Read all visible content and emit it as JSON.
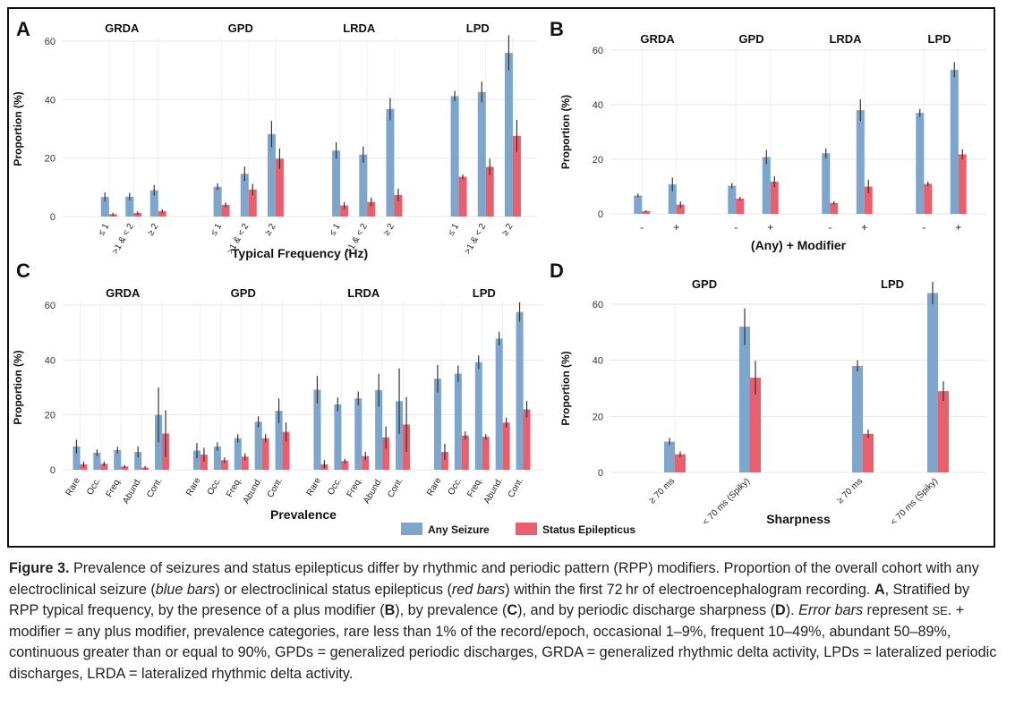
{
  "colors": {
    "blue": "#7ea6cc",
    "red": "#e8606e",
    "grid": "#e6e6e6"
  },
  "legend": {
    "blue_label": "Any Seizure",
    "red_label": "Status Epilepticus"
  },
  "caption": {
    "fig_label": "Figure 3.",
    "p1": " Prevalence of seizures and status epilepticus differ by rhythmic and periodic pattern (RPP) modifiers. Proportion of the overall cohort with any electroclinical seizure (",
    "blue_bars": "blue bars",
    "p2": ") or electroclinical status epilepticus (",
    "red_bars": "red bars",
    "p3": ") within the first 72 hr of electroencephalogram recording. ",
    "a": "A",
    "p4": ", Stratified by RPP typical frequency, by the presence of a plus modifier (",
    "b": "B",
    "p5": "), by prevalence (",
    "c": "C",
    "p6": "), and by periodic discharge sharpness (",
    "d": "D",
    "p7": "). ",
    "error_bars": "Error bars",
    "p8": " represent ",
    "se": "SE",
    "p9": ". + modifier = any plus modifier, prevalence categories, rare less than 1% of the record/epoch, occasional 1–9%, frequent 10–49%, abundant 50–89%, continuous greater than or equal to 90%, GPDs = generalized periodic discharges, GRDA = generalized rhythmic delta activity, LPDs = lateralized periodic discharges, LRDA = lateralized rhythmic delta activity."
  },
  "chart_data": [
    {
      "panel": "A",
      "type": "bar",
      "xlabel": "Typical Frequency (Hz)",
      "ylabel": "Proportion (%)",
      "ylim": [
        0,
        60
      ],
      "yticks": [
        0,
        20,
        40,
        60
      ],
      "groups": [
        {
          "name": "GRDA",
          "categories": [
            "≤ 1",
            ">1 & < 2",
            "≥ 2"
          ],
          "series": [
            {
              "name": "Any Seizure",
              "values": [
                6.7,
                6.8,
                9.0
              ],
              "errors": [
                1.5,
                1.3,
                1.8
              ]
            },
            {
              "name": "Status Epilepticus",
              "values": [
                0.8,
                1.2,
                1.8
              ],
              "errors": [
                0.5,
                0.6,
                0.7
              ]
            }
          ]
        },
        {
          "name": "GPD",
          "categories": [
            "≤ 1",
            ">1 & < 2",
            "≥ 2"
          ],
          "series": [
            {
              "name": "Any Seizure",
              "values": [
                10.2,
                14.6,
                28.2
              ],
              "errors": [
                1.2,
                2.5,
                4.5
              ]
            },
            {
              "name": "Status Epilepticus",
              "values": [
                4.0,
                9.2,
                19.8
              ],
              "errors": [
                0.8,
                2.0,
                3.5
              ]
            }
          ]
        },
        {
          "name": "LRDA",
          "categories": [
            "≤ 1",
            ">1 & < 2",
            "≥ 2"
          ],
          "series": [
            {
              "name": "Any Seizure",
              "values": [
                22.6,
                21.2,
                36.8
              ],
              "errors": [
                2.8,
                2.8,
                3.8
              ]
            },
            {
              "name": "Status Epilepticus",
              "values": [
                3.8,
                5.0,
                7.4
              ],
              "errors": [
                1.2,
                1.5,
                2.2
              ]
            }
          ]
        },
        {
          "name": "LPD",
          "categories": [
            "≤ 1",
            ">1 & < 2",
            "≥ 2"
          ],
          "series": [
            {
              "name": "Any Seizure",
              "values": [
                41.2,
                42.6,
                56.0
              ],
              "errors": [
                1.8,
                3.5,
                6.0
              ]
            },
            {
              "name": "Status Epilepticus",
              "values": [
                13.6,
                17.0,
                27.6
              ],
              "errors": [
                0.8,
                2.8,
                5.5
              ]
            }
          ]
        }
      ]
    },
    {
      "panel": "B",
      "type": "bar",
      "xlabel": "(Any) + Modifier",
      "ylabel": "Proportion (%)",
      "ylim": [
        0,
        60
      ],
      "yticks": [
        0,
        20,
        40,
        60
      ],
      "groups": [
        {
          "name": "GRDA",
          "categories": [
            "-",
            "+"
          ],
          "series": [
            {
              "name": "Any Seizure",
              "values": [
                6.7,
                10.8
              ],
              "errors": [
                0.7,
                2.5
              ]
            },
            {
              "name": "Status Epilepticus",
              "values": [
                1.0,
                3.4
              ],
              "errors": [
                0.3,
                1.2
              ]
            }
          ]
        },
        {
          "name": "GPD",
          "categories": [
            "-",
            "+"
          ],
          "series": [
            {
              "name": "Any Seizure",
              "values": [
                10.3,
                20.8
              ],
              "errors": [
                1.0,
                2.6
              ]
            },
            {
              "name": "Status Epilepticus",
              "values": [
                5.6,
                11.8
              ],
              "errors": [
                0.6,
                2.0
              ]
            }
          ]
        },
        {
          "name": "LRDA",
          "categories": [
            "-",
            "+"
          ],
          "series": [
            {
              "name": "Any Seizure",
              "values": [
                22.2,
                38.0
              ],
              "errors": [
                1.8,
                4.0
              ]
            },
            {
              "name": "Status Epilepticus",
              "values": [
                4.0,
                10.0
              ],
              "errors": [
                0.6,
                2.5
              ]
            }
          ]
        },
        {
          "name": "LPD",
          "categories": [
            "-",
            "+"
          ],
          "series": [
            {
              "name": "Any Seizure",
              "values": [
                37.0,
                52.8
              ],
              "errors": [
                1.5,
                2.8
              ]
            },
            {
              "name": "Status Epilepticus",
              "values": [
                11.0,
                21.8
              ],
              "errors": [
                0.8,
                1.8
              ]
            }
          ]
        }
      ]
    },
    {
      "panel": "C",
      "type": "bar",
      "xlabel": "Prevalence",
      "ylabel": "Proportion (%)",
      "ylim": [
        0,
        60
      ],
      "yticks": [
        0,
        20,
        40,
        60
      ],
      "groups": [
        {
          "name": "GRDA",
          "categories": [
            "Rare",
            "Occ.",
            "Freq.",
            "Abund.",
            "Cont."
          ],
          "series": [
            {
              "name": "Any Seizure",
              "values": [
                8.5,
                6.2,
                7.2,
                6.5,
                20.0
              ],
              "errors": [
                2.5,
                1.2,
                1.2,
                2.0,
                10.0
              ]
            },
            {
              "name": "Status Epilepticus",
              "values": [
                2.0,
                2.2,
                1.2,
                0.8,
                13.2
              ],
              "errors": [
                1.0,
                0.8,
                0.5,
                0.6,
                8.5
              ]
            }
          ]
        },
        {
          "name": "GPD",
          "categories": [
            "Rare",
            "Occ.",
            "Freq.",
            "Abund.",
            "Cont."
          ],
          "series": [
            {
              "name": "Any Seizure",
              "values": [
                7.0,
                8.5,
                11.5,
                17.5,
                21.5
              ],
              "errors": [
                2.8,
                1.5,
                1.5,
                2.0,
                4.5
              ]
            },
            {
              "name": "Status Epilepticus",
              "values": [
                5.5,
                3.5,
                4.8,
                11.5,
                13.8
              ],
              "errors": [
                2.5,
                1.0,
                1.2,
                1.5,
                3.5
              ]
            }
          ]
        },
        {
          "name": "LRDA",
          "categories": [
            "Rare",
            "Occ.",
            "Freq.",
            "Abund.",
            "Cont."
          ],
          "series": [
            {
              "name": "Any Seizure",
              "values": [
                29.2,
                23.8,
                26.0,
                29.0,
                25.0
              ],
              "errors": [
                5.0,
                2.5,
                2.5,
                6.0,
                12.0
              ]
            },
            {
              "name": "Status Epilepticus",
              "values": [
                2.0,
                3.2,
                5.0,
                11.8,
                16.5
              ],
              "errors": [
                1.5,
                0.8,
                1.5,
                4.0,
                10.0
              ]
            }
          ]
        },
        {
          "name": "LPD",
          "categories": [
            "Rare",
            "Occ.",
            "Freq.",
            "Abund.",
            "Cont."
          ],
          "series": [
            {
              "name": "Any Seizure",
              "values": [
                33.2,
                35.0,
                39.2,
                47.8,
                57.5
              ],
              "errors": [
                5.0,
                3.0,
                2.5,
                2.5,
                3.5
              ]
            },
            {
              "name": "Status Epilepticus",
              "values": [
                6.5,
                12.5,
                12.0,
                17.2,
                22.0
              ],
              "errors": [
                3.0,
                1.5,
                1.0,
                1.8,
                3.0
              ]
            }
          ]
        }
      ]
    },
    {
      "panel": "D",
      "type": "bar",
      "xlabel": "Sharpness",
      "ylabel": "Proportion (%)",
      "ylim": [
        0,
        60
      ],
      "yticks": [
        0,
        20,
        40,
        60
      ],
      "groups": [
        {
          "name": "GPD",
          "categories": [
            "≥ 70 ms",
            "< 70 ms (Spiky)"
          ],
          "series": [
            {
              "name": "Any Seizure",
              "values": [
                11.0,
                52.0
              ],
              "errors": [
                1.3,
                6.5
              ]
            },
            {
              "name": "Status Epilepticus",
              "values": [
                6.5,
                33.8
              ],
              "errors": [
                1.0,
                6.0
              ]
            }
          ]
        },
        {
          "name": "LPD",
          "categories": [
            "≥ 70 ms",
            "< 70 ms (Spiky)"
          ],
          "series": [
            {
              "name": "Any Seizure",
              "values": [
                38.0,
                64.0
              ],
              "errors": [
                2.0,
                4.0
              ]
            },
            {
              "name": "Status Epilepticus",
              "values": [
                13.8,
                29.0
              ],
              "errors": [
                1.5,
                3.5
              ]
            }
          ]
        }
      ]
    }
  ]
}
